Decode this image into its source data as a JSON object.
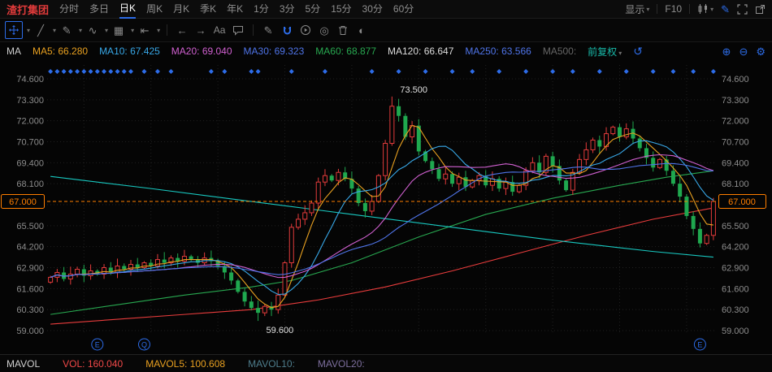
{
  "app": {
    "stock_name": "渣打集团",
    "tabs": [
      "分时",
      "多日",
      "日K",
      "周K",
      "月K",
      "季K",
      "年K",
      "1分",
      "3分",
      "5分",
      "15分",
      "30分",
      "60分"
    ],
    "selected_tab": "日K",
    "right_menu": {
      "display_label": "显示",
      "f10_label": "F10"
    }
  },
  "icons": {
    "caret": "▾",
    "line": "╱",
    "pencil": "✎",
    "wave": "∿",
    "grid": "▦",
    "to_bar": "⇤",
    "arrow_left": "←",
    "arrow_right": "→",
    "text_tool": "Aa",
    "target": "◎",
    "half_circle": "◐",
    "undo": "↺",
    "plus_circle": "⊕",
    "minus_circle": "⊖",
    "gear": "⚙"
  },
  "indicators": {
    "group_label": "MA",
    "items": [
      {
        "label": "MA5:",
        "value": "66.280",
        "color": "#e8a020"
      },
      {
        "label": "MA10:",
        "value": "67.425",
        "color": "#38a8e8"
      },
      {
        "label": "MA20:",
        "value": "69.040",
        "color": "#d060d0"
      },
      {
        "label": "MA30:",
        "value": "69.323",
        "color": "#4f74e8"
      },
      {
        "label": "MA60:",
        "value": "68.877",
        "color": "#28a850"
      },
      {
        "label": "MA120:",
        "value": "66.647",
        "color": "#dcdcdc"
      },
      {
        "label": "MA250:",
        "value": "63.566",
        "color": "#4f74e8"
      },
      {
        "label": "MA500:",
        "value": "",
        "color": "#666666"
      }
    ],
    "adjust_label": "前复权"
  },
  "axis": {
    "labels": [
      "74.600",
      "73.300",
      "72.000",
      "70.700",
      "69.400",
      "68.100",
      "65.500",
      "64.200",
      "62.900",
      "61.600",
      "60.300",
      "59.000"
    ],
    "price_tag": "67.000",
    "price_color": "#ff7e00"
  },
  "annotations": {
    "high": "73.500",
    "low": "59.600"
  },
  "markers": [
    {
      "letter": "E",
      "index": 7
    },
    {
      "letter": "Q",
      "index": 14
    },
    {
      "letter": "E",
      "index": 97
    }
  ],
  "volume_bar": {
    "group_label": "MAVOL",
    "items": [
      {
        "label": "VOL:",
        "value": "160.040",
        "color": "#f04848"
      },
      {
        "label": "MAVOL5:",
        "value": "100.608",
        "color": "#e8a020"
      },
      {
        "label": "MAVOL10:",
        "value": "",
        "color": "#4e7d8c"
      },
      {
        "label": "MAVOL20:",
        "value": "",
        "color": "#7d6f9e"
      }
    ]
  },
  "colors": {
    "accent_blue": "#2d6ce8",
    "candle_up": "#e23b3b",
    "candle_down": "#1fa84f",
    "grid": "#202020",
    "axis_text": "#8c8c8c",
    "event_dot": "#2d6ce8"
  },
  "chart_data": {
    "type": "candlestick",
    "ylim": [
      59.0,
      74.6
    ],
    "grid_step": 1.3,
    "current_price": 67.0,
    "closes": [
      62.3,
      62.6,
      62.2,
      62.5,
      62.8,
      62.4,
      62.7,
      62.5,
      62.9,
      62.6,
      63.0,
      62.8,
      63.1,
      62.9,
      63.2,
      63.0,
      63.4,
      63.2,
      63.5,
      63.3,
      63.6,
      63.4,
      63.2,
      63.5,
      63.3,
      63.0,
      62.6,
      62.1,
      61.4,
      60.8,
      60.4,
      60.1,
      60.5,
      60.3,
      61.2,
      63.2,
      65.4,
      65.9,
      66.3,
      66.9,
      68.2,
      68.6,
      68.3,
      68.8,
      68.4,
      67.8,
      66.9,
      66.4,
      67.0,
      68.6,
      70.6,
      72.9,
      72.3,
      71.0,
      71.7,
      70.1,
      69.5,
      69.0,
      68.4,
      68.7,
      68.1,
      68.5,
      67.9,
      68.3,
      68.6,
      68.0,
      68.4,
      67.8,
      68.2,
      67.6,
      68.0,
      68.9,
      69.4,
      68.8,
      69.8,
      69.2,
      68.3,
      67.7,
      68.8,
      69.6,
      70.2,
      70.8,
      70.4,
      71.2,
      71.6,
      71.0,
      71.5,
      70.9,
      70.3,
      69.7,
      69.1,
      69.6,
      68.9,
      68.1,
      67.3,
      66.1,
      65.3,
      64.4,
      64.9,
      67.0
    ],
    "first_open": 62.0,
    "high_annotation": {
      "index": 51,
      "value": 73.5
    },
    "low_annotation": {
      "index": 31,
      "value": 59.6
    },
    "ma_overlays": [
      {
        "name": "MA5",
        "period": 5,
        "color": "#e8a020"
      },
      {
        "name": "MA10",
        "period": 10,
        "color": "#38a8e8"
      },
      {
        "name": "MA20",
        "period": 20,
        "color": "#d060d0"
      },
      {
        "name": "MA30",
        "period": 30,
        "color": "#4f74e8"
      }
    ],
    "trend_lines": [
      {
        "name": "MA60",
        "color": "#28a850",
        "points": [
          [
            0,
            60.0
          ],
          [
            10,
            60.6
          ],
          [
            20,
            61.2
          ],
          [
            30,
            61.7
          ],
          [
            36,
            62.1
          ],
          [
            45,
            63.2
          ],
          [
            55,
            64.8
          ],
          [
            65,
            66.2
          ],
          [
            75,
            67.2
          ],
          [
            85,
            68.0
          ],
          [
            92,
            68.5
          ],
          [
            99,
            68.9
          ]
        ]
      },
      {
        "name": "MA120",
        "color": "#e83c3c",
        "points": [
          [
            0,
            59.4
          ],
          [
            10,
            59.7
          ],
          [
            20,
            60.0
          ],
          [
            30,
            60.3
          ],
          [
            40,
            60.9
          ],
          [
            50,
            61.7
          ],
          [
            60,
            62.7
          ],
          [
            70,
            63.8
          ],
          [
            80,
            64.9
          ],
          [
            90,
            65.9
          ],
          [
            99,
            66.6
          ]
        ]
      },
      {
        "name": "MA250",
        "color": "#18c8c0",
        "points": [
          [
            0,
            68.55
          ],
          [
            15,
            67.8
          ],
          [
            30,
            67.0
          ],
          [
            45,
            66.2
          ],
          [
            60,
            65.4
          ],
          [
            75,
            64.6
          ],
          [
            90,
            63.9
          ],
          [
            99,
            63.55
          ]
        ]
      }
    ],
    "event_dot_indices": [
      0,
      1,
      2,
      3,
      4,
      5,
      6,
      7,
      8,
      9,
      10,
      11,
      12,
      14,
      16,
      18,
      24,
      26,
      30,
      31,
      36,
      41,
      48,
      52,
      56,
      60,
      63,
      67,
      71,
      75,
      78,
      82,
      86,
      90,
      93,
      96,
      99
    ]
  }
}
